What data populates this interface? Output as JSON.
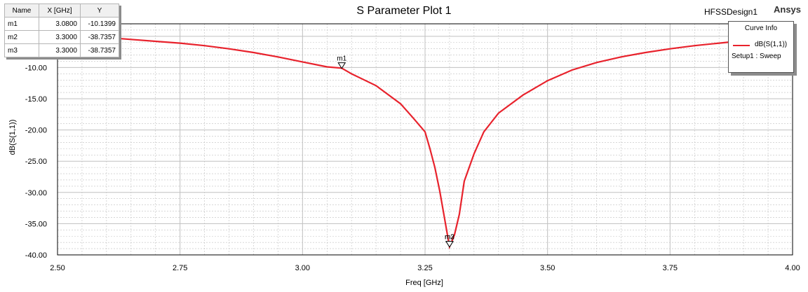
{
  "window": {
    "title": "S Parameter Plot 1",
    "design_name": "HFSSDesign1",
    "brand": "Ansys"
  },
  "colors": {
    "curve": "#e8222c",
    "grid": "#c0c0c0",
    "background": "#ffffff"
  },
  "marker_table": {
    "headers": [
      "Name",
      "X [GHz]",
      "Y"
    ],
    "rows": [
      [
        "m1",
        "3.0800",
        "-10.1399"
      ],
      [
        "m2",
        "3.3000",
        "-38.7357"
      ],
      [
        "m3",
        "3.3000",
        "-38.7357"
      ]
    ]
  },
  "legend": {
    "header": "Curve Info",
    "series_label": "dB(S(1,1))",
    "setup_label": "Setup1 : Sweep"
  },
  "chart_data": {
    "type": "line",
    "title": "S Parameter Plot 1",
    "xlabel": "Freq [GHz]",
    "ylabel": "dB(S(1,1))",
    "xlim": [
      2.5,
      4.0
    ],
    "ylim": [
      -40,
      -3
    ],
    "xticks": [
      "2.50",
      "2.75",
      "3.00",
      "3.25",
      "3.50",
      "3.75",
      "4.00"
    ],
    "yticks": [
      "-10.00",
      "-15.00",
      "-20.00",
      "-25.00",
      "-30.00",
      "-35.00",
      "-40.00"
    ],
    "grid": true,
    "legend_position": "top-right",
    "series": [
      {
        "name": "dB(S(1,1))",
        "x": [
          2.5,
          2.55,
          2.6,
          2.65,
          2.7,
          2.75,
          2.8,
          2.85,
          2.9,
          2.95,
          3.0,
          3.05,
          3.08,
          3.1,
          3.15,
          3.2,
          3.225,
          3.25,
          3.26,
          3.27,
          3.28,
          3.29,
          3.3,
          3.31,
          3.32,
          3.33,
          3.35,
          3.37,
          3.4,
          3.45,
          3.5,
          3.55,
          3.6,
          3.65,
          3.7,
          3.75,
          3.8,
          3.85,
          3.9,
          3.95,
          4.0
        ],
        "y": [
          -4.8,
          -5.0,
          -5.2,
          -5.5,
          -5.8,
          -6.1,
          -6.5,
          -7.0,
          -7.6,
          -8.3,
          -9.1,
          -9.9,
          -10.1,
          -11.0,
          -12.9,
          -15.8,
          -18.0,
          -20.3,
          -23.0,
          -26.0,
          -29.8,
          -34.2,
          -38.7,
          -36.8,
          -33.5,
          -28.2,
          -23.8,
          -20.3,
          -17.3,
          -14.4,
          -12.1,
          -10.4,
          -9.2,
          -8.3,
          -7.6,
          -7.0,
          -6.5,
          -6.1,
          -5.7,
          -5.4,
          -5.1
        ]
      }
    ],
    "markers": [
      {
        "name": "m1",
        "x": 3.08,
        "y": -10.1399
      },
      {
        "name": "m2",
        "x": 3.3,
        "y": -38.7357
      },
      {
        "name": "m3",
        "x": 3.3,
        "y": -38.7357
      }
    ]
  }
}
